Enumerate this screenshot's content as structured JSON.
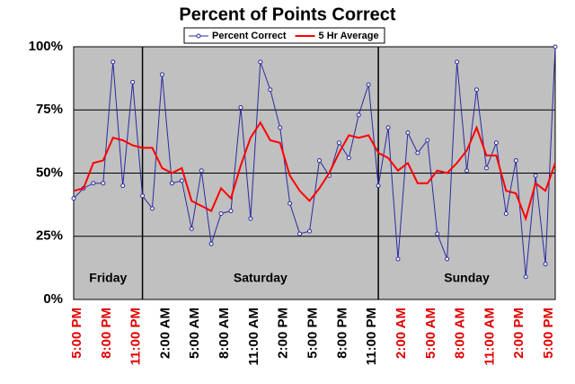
{
  "chart_data": {
    "type": "line",
    "title": "Percent of Points Correct",
    "categories": [
      "5:00 PM",
      null,
      null,
      "8:00 PM",
      null,
      null,
      "11:00 PM",
      null,
      null,
      "2:00 AM",
      null,
      null,
      "5:00 AM",
      null,
      null,
      "8:00 AM",
      null,
      null,
      "11:00 AM",
      null,
      null,
      "2:00 PM",
      null,
      null,
      "5:00 PM",
      null,
      null,
      "8:00 PM",
      null,
      null,
      "11:00 PM",
      null,
      null,
      "2:00 AM",
      null,
      null,
      "5:00 AM",
      null,
      null,
      "8:00 AM",
      null,
      null,
      "11:00 AM",
      null,
      null,
      "2:00 PM",
      null,
      null,
      "5:00 PM",
      null
    ],
    "series": [
      {
        "name": "Percent Correct",
        "color": "#2a2aa0",
        "marker": "circle",
        "values": [
          40,
          44,
          46,
          46,
          94,
          45,
          86,
          41,
          36,
          89,
          46,
          47,
          28,
          51,
          22,
          34,
          35,
          76,
          32,
          94,
          83,
          68,
          38,
          26,
          27,
          55,
          49,
          62,
          56,
          73,
          85,
          45,
          68,
          16,
          66,
          58,
          63,
          26,
          16,
          94,
          51,
          83,
          52,
          62,
          34,
          55,
          9,
          49,
          14,
          100
        ]
      },
      {
        "name": "5 Hr Average",
        "color": "#ff0000",
        "marker": "none",
        "values": [
          43,
          44,
          54,
          55,
          64,
          63,
          61,
          60,
          60,
          52,
          50,
          52,
          39,
          37,
          35,
          44,
          40,
          53,
          64,
          70,
          63,
          62,
          49,
          43,
          39,
          44,
          50,
          58,
          65,
          64,
          65,
          58,
          56,
          51,
          54,
          46,
          46,
          51,
          50,
          54,
          59,
          68,
          57,
          57,
          43,
          42,
          32,
          46,
          43,
          54
        ]
      }
    ],
    "annotations": [
      "Friday",
      "Saturday",
      "Sunday"
    ],
    "ylim": [
      0,
      100
    ],
    "yticks": [
      {
        "value": 0,
        "label": "0%"
      },
      {
        "value": 25,
        "label": "25%"
      },
      {
        "value": 50,
        "label": "50%"
      },
      {
        "value": 75,
        "label": "75%"
      },
      {
        "value": 100,
        "label": "100%"
      }
    ],
    "grid": true,
    "legend": "top"
  }
}
